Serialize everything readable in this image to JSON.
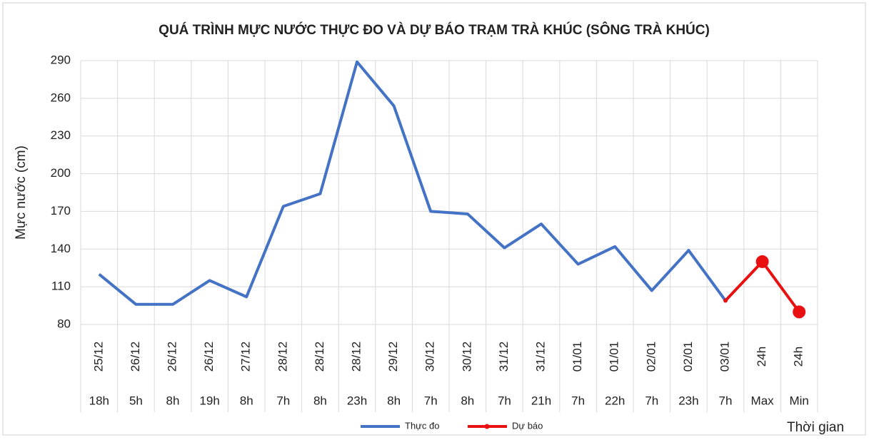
{
  "chart_data": {
    "type": "line",
    "title": "QUÁ TRÌNH MỰC NƯỚC THỰC ĐO VÀ DỰ BÁO TRẠM TRÀ KHÚC (SÔNG TRÀ KHÚC)",
    "y_label": "Mực nước (cm)",
    "x_label": "Thời gian",
    "categories": [
      "25/12",
      "26/12",
      "26/12",
      "26/12",
      "27/12",
      "28/12",
      "28/12",
      "28/12",
      "29/12",
      "30/12",
      "30/12",
      "31/12",
      "31/12",
      "01/01",
      "01/01",
      "02/01",
      "02/01",
      "03/01",
      "24h",
      "24h"
    ],
    "subcategories": [
      "18h",
      "5h",
      "8h",
      "19h",
      "8h",
      "7h",
      "8h",
      "23h",
      "8h",
      "7h",
      "8h",
      "7h",
      "21h",
      "7h",
      "22h",
      "7h",
      "23h",
      "7h",
      "Max",
      "Min"
    ],
    "series": [
      {
        "name": "Thực đo",
        "color": "#4472c4",
        "values": [
          120,
          96,
          96,
          115,
          102,
          174,
          184,
          289,
          254,
          170,
          168,
          141,
          160,
          128,
          142,
          107,
          139,
          99,
          null,
          null
        ]
      },
      {
        "name": "Dự báo",
        "color": "#e81010",
        "markers": true,
        "values": [
          null,
          null,
          null,
          null,
          null,
          null,
          null,
          null,
          null,
          null,
          null,
          null,
          null,
          null,
          null,
          null,
          null,
          99,
          130,
          90
        ]
      }
    ],
    "ylim": [
      80,
      290
    ],
    "yticks": [
      80,
      110,
      140,
      170,
      200,
      230,
      260,
      290
    ],
    "grid": true,
    "legend": "bottom"
  }
}
